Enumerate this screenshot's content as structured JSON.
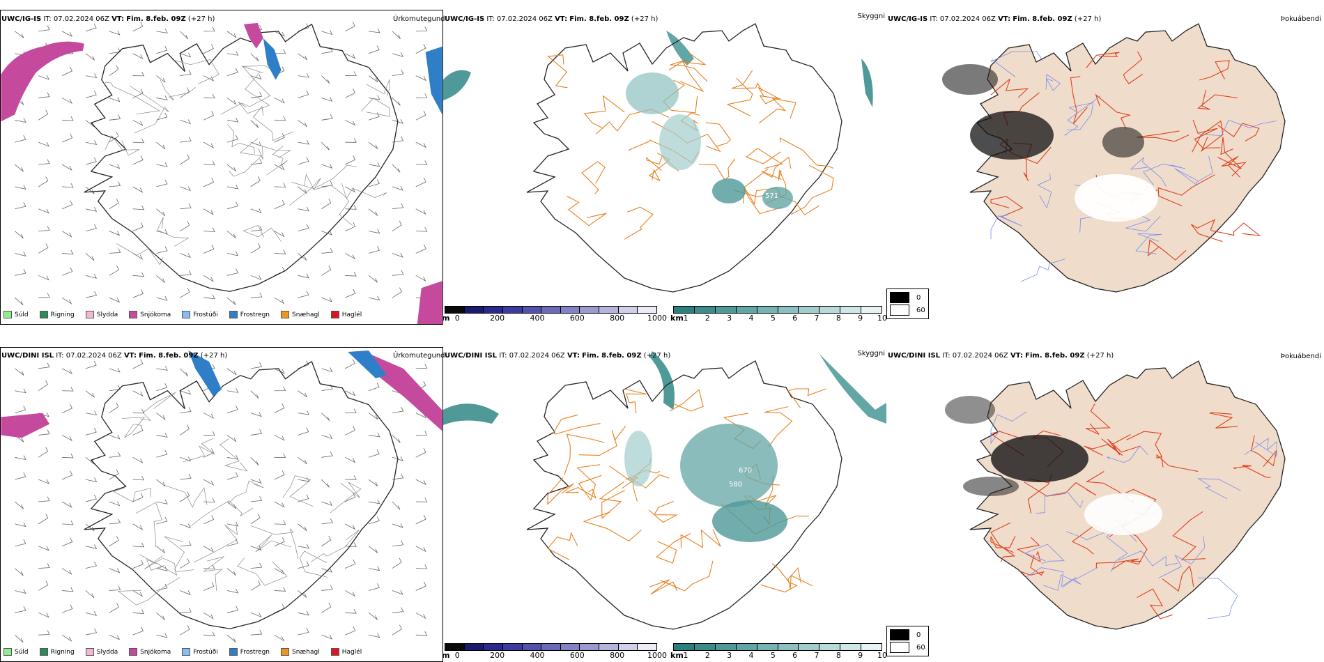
{
  "rows": [
    {
      "model": "UWC/IG-IS",
      "it": "IT: 07.02.2024 06Z",
      "vt_label": "VT:",
      "vt_value": "Fim. 8.feb. 09Z",
      "lead": "(+27 h)"
    },
    {
      "model": "UWC/DINI ISL",
      "it": "IT: 07.02.2024 06Z",
      "vt_label": "VT:",
      "vt_value": "Fim. 8.feb. 09Z",
      "lead": "(+27 h)"
    }
  ],
  "panel_titles": {
    "precip_type": "Úrkomutegund",
    "visibility": "Skyggni",
    "fog": "Þokuábendi"
  },
  "precip_legend": [
    {
      "label": "Súld",
      "color": "#90ee90"
    },
    {
      "label": "Rigning",
      "color": "#2e8b57"
    },
    {
      "label": "Slydda",
      "color": "#f4b6d2"
    },
    {
      "label": "Snjókoma",
      "color": "#c54a9e"
    },
    {
      "label": "Frostúði",
      "color": "#87bdf0"
    },
    {
      "label": "Frostregn",
      "color": "#2f7fc8"
    },
    {
      "label": "Snæhagl",
      "color": "#f0961e"
    },
    {
      "label": "Haglél",
      "color": "#e0141e"
    }
  ],
  "ceiling_bar": {
    "unit": "m",
    "ticks": [
      "0",
      "200",
      "400",
      "600",
      "800",
      "1000"
    ],
    "colors": [
      "#0a0a0a",
      "#1a1a6e",
      "#2a2a8c",
      "#3c3ca0",
      "#5252ad",
      "#6a6ab8",
      "#8282c4",
      "#9a9ad0",
      "#b4b4dc",
      "#d0d0ea",
      "#ececf6"
    ]
  },
  "visibility_bar": {
    "unit": "km",
    "ticks": [
      "1",
      "2",
      "3",
      "4",
      "5",
      "6",
      "7",
      "8",
      "9",
      "10"
    ],
    "colors": [
      "#2a7f7f",
      "#3b8c8c",
      "#4f9999",
      "#63a6a6",
      "#78b3b3",
      "#8dc0c0",
      "#a3cdcd",
      "#b9dada",
      "#d0e7e7",
      "#e7f3f3"
    ]
  },
  "fog_legend": [
    {
      "label": "0",
      "color": "#000000"
    },
    {
      "label": "60",
      "color": "#ffffff"
    }
  ],
  "map_labels": {
    "row0": [
      "571"
    ],
    "row1": [
      "670",
      "580"
    ]
  },
  "colors": {
    "roads_orange": "#e8801e",
    "roads_red": "#e0401c",
    "land_fill": "#efdccb",
    "coast": "#000000",
    "rivers": "#7a8cf0"
  }
}
